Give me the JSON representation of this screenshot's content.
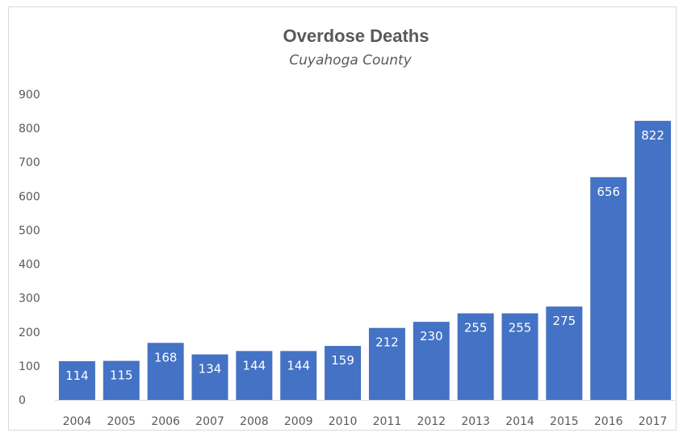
{
  "chart_data": {
    "type": "bar",
    "title": "Overdose Deaths",
    "subtitle": "Cuyahoga County",
    "xlabel": "",
    "ylabel": "",
    "categories": [
      "2004",
      "2005",
      "2006",
      "2007",
      "2008",
      "2009",
      "2010",
      "2011",
      "2012",
      "2013",
      "2014",
      "2015",
      "2016",
      "2017"
    ],
    "values": [
      114,
      115,
      168,
      134,
      144,
      144,
      159,
      212,
      230,
      255,
      255,
      275,
      656,
      822
    ],
    "ylim": [
      0,
      900
    ],
    "yticks": [
      0,
      100,
      200,
      300,
      400,
      500,
      600,
      700,
      800,
      900
    ],
    "grid": false,
    "legend": "none",
    "data_labels": "inside-end",
    "colors": {
      "bar": "#4472C4",
      "label": "#ffffff",
      "text": "#595959",
      "axis": "#d9d9d9"
    }
  }
}
